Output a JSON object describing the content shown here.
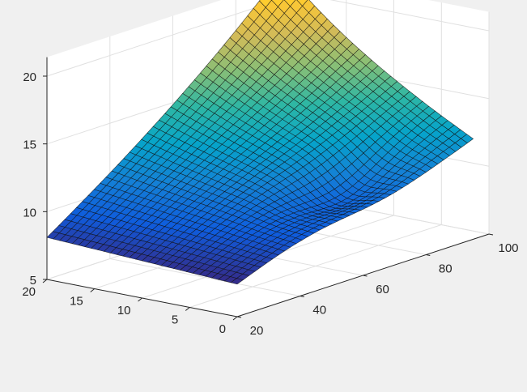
{
  "chart_data": {
    "type": "surface",
    "colormap": "parula",
    "colormap_colors": [
      "#352a87",
      "#0f5cdd",
      "#1481d6",
      "#06a4ca",
      "#2eb7a4",
      "#87bf77",
      "#d1bb59",
      "#fec832",
      "#f9fb0e"
    ],
    "background_color": "#f0f0f0",
    "axes_color": "#ffffff",
    "grid": true,
    "view": "3d-isometric",
    "x_axis": {
      "range": [
        20,
        100
      ],
      "ticks": [
        20,
        40,
        60,
        80,
        100
      ],
      "tick_labels": [
        "20",
        "40",
        "60",
        "80",
        "100"
      ]
    },
    "y_axis": {
      "range": [
        0,
        20
      ],
      "ticks": [
        0,
        5,
        10,
        15,
        20
      ],
      "tick_labels": [
        "0",
        "5",
        "10",
        "15",
        "20"
      ]
    },
    "z_axis": {
      "range": [
        5,
        20
      ],
      "ticks": [
        5,
        10,
        15,
        20
      ],
      "tick_labels": [
        "5",
        "10",
        "15",
        "20"
      ]
    },
    "corner_values": [
      {
        "x": 20,
        "y": 0,
        "z": 7.4
      },
      {
        "x": 95,
        "y": 0,
        "z": 12.5
      },
      {
        "x": 20,
        "y": 20,
        "z": 8.1
      },
      {
        "x": 95,
        "y": 20,
        "z": 20.8
      }
    ],
    "mesh_resolution": {
      "x_lines": 40,
      "y_lines": 30
    }
  }
}
